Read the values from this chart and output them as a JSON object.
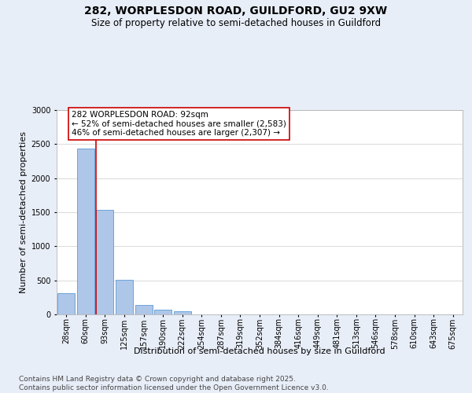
{
  "title1": "282, WORPLESDON ROAD, GUILDFORD, GU2 9XW",
  "title2": "Size of property relative to semi-detached houses in Guildford",
  "xlabel": "Distribution of semi-detached houses by size in Guildford",
  "ylabel": "Number of semi-detached properties",
  "footnote1": "Contains HM Land Registry data © Crown copyright and database right 2025.",
  "footnote2": "Contains public sector information licensed under the Open Government Licence v3.0.",
  "categories": [
    "28sqm",
    "60sqm",
    "93sqm",
    "125sqm",
    "157sqm",
    "190sqm",
    "222sqm",
    "254sqm",
    "287sqm",
    "319sqm",
    "352sqm",
    "384sqm",
    "416sqm",
    "449sqm",
    "481sqm",
    "513sqm",
    "546sqm",
    "578sqm",
    "610sqm",
    "643sqm",
    "675sqm"
  ],
  "values": [
    310,
    2430,
    1540,
    510,
    140,
    65,
    45,
    0,
    0,
    0,
    0,
    0,
    0,
    0,
    0,
    0,
    0,
    0,
    0,
    0,
    0
  ],
  "ylim": [
    0,
    3000
  ],
  "yticks": [
    0,
    500,
    1000,
    1500,
    2000,
    2500,
    3000
  ],
  "bar_color": "#aec6e8",
  "bar_edge_color": "#5b9bd5",
  "vline_x_index": 1.55,
  "vline_color": "#cc0000",
  "annotation_line1": "282 WORPLESDON ROAD: 92sqm",
  "annotation_line2": "← 52% of semi-detached houses are smaller (2,583)",
  "annotation_line3": "46% of semi-detached houses are larger (2,307) →",
  "annotation_box_edgecolor": "#cc0000",
  "plot_bg_color": "#ffffff",
  "fig_bg_color": "#e8eef8",
  "grid_color": "#dddddd",
  "title1_fontsize": 10,
  "title2_fontsize": 8.5,
  "annotation_fontsize": 7.5,
  "tick_fontsize": 7,
  "ylabel_fontsize": 8,
  "xlabel_fontsize": 8,
  "footnote_fontsize": 6.5
}
